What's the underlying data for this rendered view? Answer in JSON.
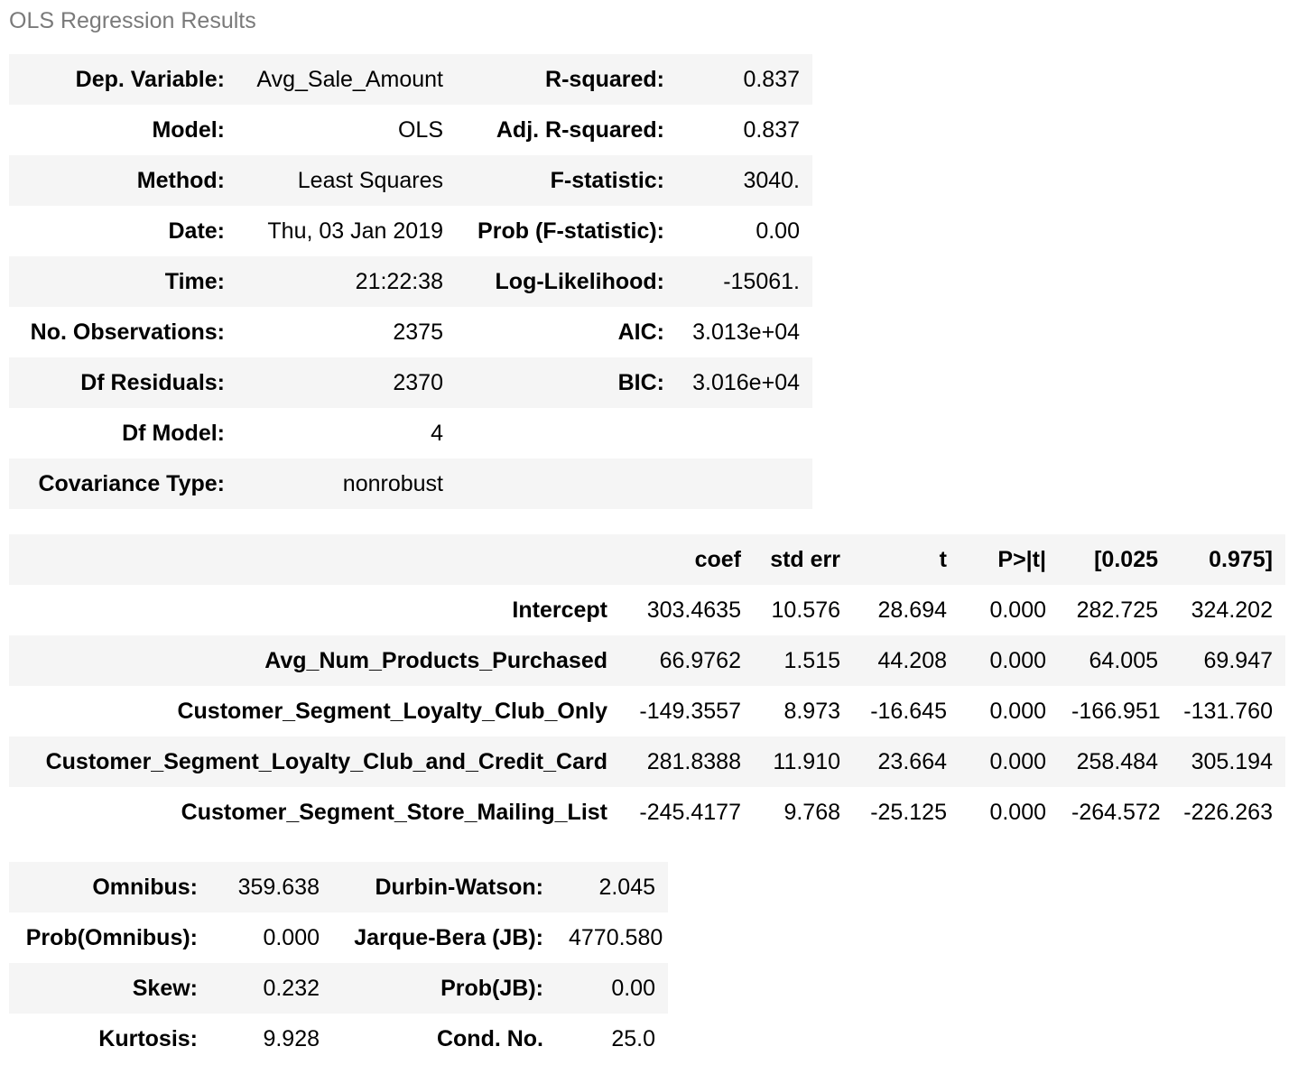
{
  "caption": "OLS Regression Results",
  "summary": {
    "rows": [
      {
        "label_left": "Dep. Variable:",
        "value_left": "Avg_Sale_Amount",
        "label_right": "R-squared:",
        "value_right": "0.837"
      },
      {
        "label_left": "Model:",
        "value_left": "OLS",
        "label_right": "Adj. R-squared:",
        "value_right": "0.837"
      },
      {
        "label_left": "Method:",
        "value_left": "Least Squares",
        "label_right": "F-statistic:",
        "value_right": "3040."
      },
      {
        "label_left": "Date:",
        "value_left": "Thu, 03 Jan 2019",
        "label_right": "Prob (F-statistic):",
        "value_right": "0.00"
      },
      {
        "label_left": "Time:",
        "value_left": "21:22:38",
        "label_right": "Log-Likelihood:",
        "value_right": "-15061."
      },
      {
        "label_left": "No. Observations:",
        "value_left": "2375",
        "label_right": "AIC:",
        "value_right": "3.013e+04"
      },
      {
        "label_left": "Df Residuals:",
        "value_left": "2370",
        "label_right": "BIC:",
        "value_right": "3.016e+04"
      },
      {
        "label_left": "Df Model:",
        "value_left": "4",
        "label_right": "",
        "value_right": ""
      },
      {
        "label_left": "Covariance Type:",
        "value_left": "nonrobust",
        "label_right": "",
        "value_right": ""
      }
    ]
  },
  "coefficients": {
    "headers": [
      "",
      "coef",
      "std err",
      "t",
      "P>|t|",
      "[0.025",
      "0.975]"
    ],
    "rows": [
      {
        "name": "Intercept",
        "coef": "303.4635",
        "std_err": "10.576",
        "t": "28.694",
        "p": "0.000",
        "ci_low": "282.725",
        "ci_high": "324.202"
      },
      {
        "name": "Avg_Num_Products_Purchased",
        "coef": "66.9762",
        "std_err": "1.515",
        "t": "44.208",
        "p": "0.000",
        "ci_low": "64.005",
        "ci_high": "69.947"
      },
      {
        "name": "Customer_Segment_Loyalty_Club_Only",
        "coef": "-149.3557",
        "std_err": "8.973",
        "t": "-16.645",
        "p": "0.000",
        "ci_low": "-166.951",
        "ci_high": "-131.760"
      },
      {
        "name": "Customer_Segment_Loyalty_Club_and_Credit_Card",
        "coef": "281.8388",
        "std_err": "11.910",
        "t": "23.664",
        "p": "0.000",
        "ci_low": "258.484",
        "ci_high": "305.194"
      },
      {
        "name": "Customer_Segment_Store_Mailing_List",
        "coef": "-245.4177",
        "std_err": "9.768",
        "t": "-25.125",
        "p": "0.000",
        "ci_low": "-264.572",
        "ci_high": "-226.263"
      }
    ]
  },
  "diagnostics": {
    "rows": [
      {
        "label_left": "Omnibus:",
        "value_left": "359.638",
        "label_right": "Durbin-Watson:",
        "value_right": "2.045"
      },
      {
        "label_left": "Prob(Omnibus):",
        "value_left": "0.000",
        "label_right": "Jarque-Bera (JB):",
        "value_right": "4770.580"
      },
      {
        "label_left": "Skew:",
        "value_left": "0.232",
        "label_right": "Prob(JB):",
        "value_right": "0.00"
      },
      {
        "label_left": "Kurtosis:",
        "value_left": "9.928",
        "label_right": "Cond. No.",
        "value_right": "25.0"
      }
    ]
  }
}
